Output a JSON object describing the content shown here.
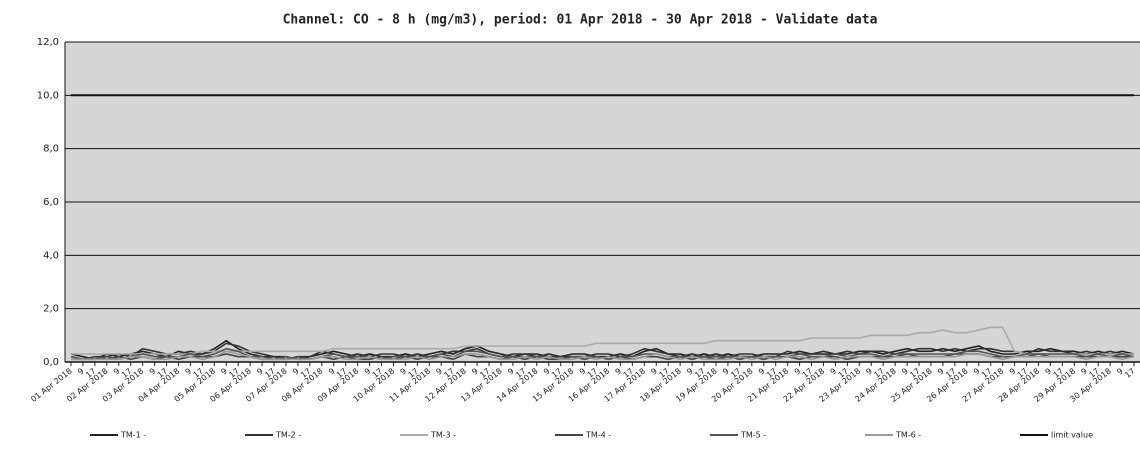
{
  "chart_data": {
    "type": "line",
    "title": "Channel: CO - 8 h (mg/m3), period: 01 Apr 2018 - 30 Apr 2018 - Validate data",
    "categories": [
      "01 Apr 2018",
      "9",
      "17",
      "02 Apr 2018",
      "9",
      "17",
      "03 Apr 2018",
      "9",
      "17",
      "04 Apr 2018",
      "9",
      "17",
      "05 Apr 2018",
      "9",
      "17",
      "06 Apr 2018",
      "9",
      "17",
      "07 Apr 2018",
      "9",
      "17",
      "08 Apr 2018",
      "9",
      "17",
      "09 Apr 2018",
      "9",
      "17",
      "10 Apr 2018",
      "9",
      "17",
      "11 Apr 2018",
      "9",
      "17",
      "12 Apr 2018",
      "9",
      "17",
      "13 Apr 2018",
      "9",
      "17",
      "14 Apr 2018",
      "9",
      "17",
      "15 Apr 2018",
      "9",
      "17",
      "16 Apr 2018",
      "9",
      "17",
      "17 Apr 2018",
      "9",
      "17",
      "18 Apr 2018",
      "9",
      "17",
      "19 Apr 2018",
      "9",
      "17",
      "20 Apr 2018",
      "9",
      "17",
      "21 Apr 2018",
      "9",
      "17",
      "22 Apr 2018",
      "9",
      "17",
      "23 Apr 2018",
      "9",
      "17",
      "24 Apr 2018",
      "9",
      "17",
      "25 Apr 2018",
      "9",
      "17",
      "26 Apr 2018",
      "9",
      "17",
      "27 Apr 2018",
      "9",
      "17",
      "28 Apr 2018",
      "9",
      "17",
      "29 Apr 2018",
      "9",
      "17",
      "30 Apr 2018",
      "9",
      "17"
    ],
    "series": [
      {
        "name": "TM-1 -",
        "color": "#222222",
        "values": [
          0.3,
          0.2,
          0.1,
          0.3,
          0.2,
          0.3,
          0.4,
          0.3,
          0.2,
          0.4,
          0.3,
          0.3,
          0.5,
          0.8,
          0.5,
          0.3,
          0.2,
          0.2,
          0.2,
          0.1,
          0.2,
          0.3,
          0.4,
          0.3,
          0.2,
          0.3,
          0.2,
          0.2,
          0.3,
          0.2,
          0.3,
          0.4,
          0.3,
          0.5,
          0.6,
          0.4,
          0.3,
          0.2,
          0.3,
          0.3,
          0.2,
          0.2,
          0.3,
          0.3,
          0.2,
          0.2,
          0.3,
          0.2,
          0.4,
          0.5,
          0.3,
          0.3,
          0.2,
          0.3,
          0.2,
          0.3,
          0.2,
          0.2,
          0.3,
          0.3,
          0.3,
          0.4,
          0.3,
          0.3,
          0.3,
          0.3,
          0.4,
          0.4,
          0.3,
          0.4,
          0.5,
          0.4,
          0.4,
          0.5,
          0.4,
          0.5,
          0.6,
          0.4,
          0.3,
          0.3,
          0.4,
          0.4,
          0.5,
          0.4,
          0.4,
          0.3,
          0.4,
          0.3,
          0.4,
          0.3
        ]
      },
      {
        "name": "TM-2 -",
        "color": "#333333",
        "values": [
          0.2,
          0.1,
          0.2,
          0.2,
          0.3,
          0.2,
          0.5,
          0.4,
          0.3,
          0.3,
          0.4,
          0.3,
          0.4,
          0.7,
          0.6,
          0.4,
          0.3,
          0.2,
          0.1,
          0.2,
          0.2,
          0.4,
          0.3,
          0.2,
          0.3,
          0.2,
          0.3,
          0.3,
          0.2,
          0.3,
          0.2,
          0.3,
          0.4,
          0.4,
          0.5,
          0.3,
          0.2,
          0.3,
          0.3,
          0.2,
          0.3,
          0.2,
          0.2,
          0.2,
          0.3,
          0.3,
          0.2,
          0.3,
          0.5,
          0.4,
          0.3,
          0.2,
          0.3,
          0.2,
          0.3,
          0.2,
          0.3,
          0.3,
          0.2,
          0.2,
          0.4,
          0.3,
          0.3,
          0.4,
          0.3,
          0.4,
          0.3,
          0.4,
          0.4,
          0.3,
          0.4,
          0.5,
          0.5,
          0.4,
          0.5,
          0.4,
          0.5,
          0.5,
          0.4,
          0.4,
          0.3,
          0.5,
          0.4,
          0.4,
          0.3,
          0.4,
          0.3,
          0.4,
          0.3,
          0.3
        ]
      },
      {
        "name": "TM-3 -",
        "color": "#aaaaaa",
        "values": [
          0.3,
          0.3,
          0.3,
          0.3,
          0.3,
          0.3,
          0.3,
          0.3,
          0.3,
          0.3,
          0.3,
          0.4,
          0.4,
          0.4,
          0.4,
          0.4,
          0.4,
          0.4,
          0.4,
          0.4,
          0.4,
          0.4,
          0.5,
          0.5,
          0.5,
          0.5,
          0.5,
          0.5,
          0.5,
          0.5,
          0.5,
          0.5,
          0.5,
          0.6,
          0.6,
          0.6,
          0.6,
          0.6,
          0.6,
          0.6,
          0.6,
          0.6,
          0.6,
          0.6,
          0.7,
          0.7,
          0.7,
          0.7,
          0.7,
          0.7,
          0.7,
          0.7,
          0.7,
          0.7,
          0.8,
          0.8,
          0.8,
          0.8,
          0.8,
          0.8,
          0.8,
          0.8,
          0.9,
          0.9,
          0.9,
          0.9,
          0.9,
          1.0,
          1.0,
          1.0,
          1.0,
          1.1,
          1.1,
          1.2,
          1.1,
          1.1,
          1.2,
          1.3,
          1.3,
          0.4,
          0.3,
          0.3,
          0.3,
          0.3,
          0.3,
          0.3,
          0.3,
          0.3,
          0.3,
          0.3
        ]
      },
      {
        "name": "TM-4 -",
        "color": "#444444",
        "values": [
          0.1,
          0.1,
          0.2,
          0.1,
          0.2,
          0.1,
          0.2,
          0.1,
          0.2,
          0.1,
          0.2,
          0.2,
          0.2,
          0.3,
          0.2,
          0.2,
          0.1,
          0.1,
          0.1,
          0.2,
          0.1,
          0.2,
          0.1,
          0.2,
          0.1,
          0.1,
          0.2,
          0.1,
          0.2,
          0.1,
          0.2,
          0.2,
          0.1,
          0.3,
          0.2,
          0.2,
          0.1,
          0.2,
          0.1,
          0.2,
          0.1,
          0.1,
          0.2,
          0.1,
          0.2,
          0.1,
          0.2,
          0.1,
          0.2,
          0.2,
          0.1,
          0.2,
          0.1,
          0.2,
          0.1,
          0.2,
          0.1,
          0.2,
          0.1,
          0.2,
          0.2,
          0.1,
          0.2,
          0.2,
          0.2,
          0.1,
          0.2,
          0.2,
          0.2,
          0.2,
          0.3,
          0.2,
          0.2,
          0.2,
          0.3,
          0.3,
          0.3,
          0.2,
          0.2,
          0.2,
          0.2,
          0.3,
          0.2,
          0.2,
          0.2,
          0.2,
          0.2,
          0.2,
          0.2,
          0.2
        ]
      },
      {
        "name": "TM-5 -",
        "color": "#555555",
        "values": [
          0.2,
          0.1,
          0.1,
          0.2,
          0.1,
          0.2,
          0.3,
          0.2,
          0.2,
          0.2,
          0.3,
          0.2,
          0.3,
          0.5,
          0.4,
          0.2,
          0.2,
          0.1,
          0.2,
          0.1,
          0.1,
          0.2,
          0.3,
          0.2,
          0.2,
          0.2,
          0.1,
          0.2,
          0.2,
          0.2,
          0.2,
          0.3,
          0.2,
          0.4,
          0.4,
          0.3,
          0.2,
          0.2,
          0.2,
          0.2,
          0.2,
          0.1,
          0.2,
          0.2,
          0.2,
          0.1,
          0.2,
          0.2,
          0.3,
          0.3,
          0.2,
          0.2,
          0.2,
          0.2,
          0.2,
          0.2,
          0.2,
          0.2,
          0.2,
          0.2,
          0.2,
          0.3,
          0.2,
          0.2,
          0.3,
          0.2,
          0.3,
          0.3,
          0.2,
          0.3,
          0.3,
          0.3,
          0.3,
          0.3,
          0.3,
          0.4,
          0.4,
          0.3,
          0.2,
          0.2,
          0.3,
          0.3,
          0.3,
          0.3,
          0.3,
          0.2,
          0.3,
          0.2,
          0.3,
          0.2
        ]
      },
      {
        "name": "TM-6 -",
        "color": "#999999",
        "values": [
          0.1,
          0.1,
          0.1,
          0.1,
          0.1,
          0.2,
          0.2,
          0.1,
          0.1,
          0.2,
          0.2,
          0.1,
          0.2,
          0.4,
          0.3,
          0.2,
          0.1,
          0.1,
          0.1,
          0.1,
          0.1,
          0.2,
          0.2,
          0.1,
          0.1,
          0.2,
          0.1,
          0.1,
          0.1,
          0.2,
          0.1,
          0.2,
          0.2,
          0.3,
          0.3,
          0.2,
          0.1,
          0.1,
          0.2,
          0.1,
          0.2,
          0.1,
          0.1,
          0.2,
          0.1,
          0.2,
          0.1,
          0.1,
          0.2,
          0.3,
          0.2,
          0.1,
          0.2,
          0.1,
          0.1,
          0.1,
          0.2,
          0.1,
          0.2,
          0.1,
          0.2,
          0.2,
          0.1,
          0.2,
          0.1,
          0.2,
          0.2,
          0.2,
          0.1,
          0.2,
          0.2,
          0.2,
          0.2,
          0.2,
          0.2,
          0.3,
          0.3,
          0.2,
          0.1,
          0.2,
          0.2,
          0.2,
          0.2,
          0.2,
          0.2,
          0.1,
          0.2,
          0.2,
          0.1,
          0.2
        ]
      },
      {
        "name": "limit value",
        "color": "#111111",
        "values": [
          10,
          10,
          10,
          10,
          10,
          10,
          10,
          10,
          10,
          10,
          10,
          10,
          10,
          10,
          10,
          10,
          10,
          10,
          10,
          10,
          10,
          10,
          10,
          10,
          10,
          10,
          10,
          10,
          10,
          10,
          10,
          10,
          10,
          10,
          10,
          10,
          10,
          10,
          10,
          10,
          10,
          10,
          10,
          10,
          10,
          10,
          10,
          10,
          10,
          10,
          10,
          10,
          10,
          10,
          10,
          10,
          10,
          10,
          10,
          10,
          10,
          10,
          10,
          10,
          10,
          10,
          10,
          10,
          10,
          10,
          10,
          10,
          10,
          10,
          10,
          10,
          10,
          10,
          10,
          10,
          10,
          10,
          10,
          10,
          10,
          10,
          10,
          10,
          10,
          10
        ]
      }
    ],
    "ylim": [
      0,
      12
    ],
    "yticks": [
      {
        "value": 0,
        "label": "0,0"
      },
      {
        "value": 2,
        "label": "2,0"
      },
      {
        "value": 4,
        "label": "4,0"
      },
      {
        "value": 6,
        "label": "6,0"
      },
      {
        "value": 8,
        "label": "8,0"
      },
      {
        "value": 10,
        "label": "10,0"
      },
      {
        "value": 12,
        "label": "12,0"
      }
    ],
    "grid": true
  }
}
